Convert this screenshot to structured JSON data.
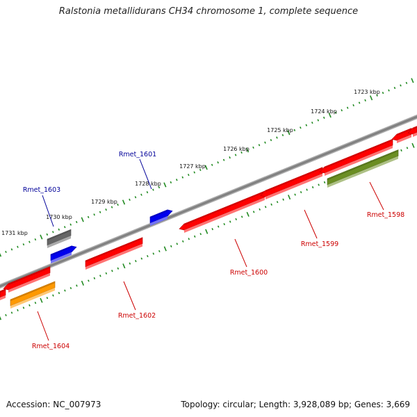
{
  "title": "Ralstonia metallidurans CH34 chromosome 1, complete sequence",
  "footer": {
    "accession": "Accession: NC_007973",
    "summary": "Topology: circular; Length: 3,928,089 bp; Genes: 3,669"
  },
  "ruler_labels": [
    "1723 kbp",
    "1724 kbp",
    "1725 kbp",
    "1726 kbp",
    "1727 kbp",
    "1728 kbp",
    "1729 kbp",
    "1730 kbp",
    "1731 kbp"
  ],
  "colors": {
    "backbone": "#808080",
    "tick": "#228b22",
    "red": "#ff0000",
    "blue": "#0000ee",
    "gray": "#666666",
    "orange": "#ff9900",
    "olive": "#6b8e23",
    "label_red": "#cc0000",
    "label_blue": "#000099"
  },
  "genes": [
    {
      "label": "Rmet_1598",
      "color": "olive"
    },
    {
      "label": "Rmet_1599",
      "color": "red"
    },
    {
      "label": "Rmet_1600",
      "color": "red"
    },
    {
      "label": "Rmet_1601",
      "color": "blue"
    },
    {
      "label": "Rmet_1602",
      "color": "red"
    },
    {
      "label": "Rmet_1603",
      "color": "gray"
    },
    {
      "label": "Rmet_1604",
      "color": "orange"
    }
  ]
}
